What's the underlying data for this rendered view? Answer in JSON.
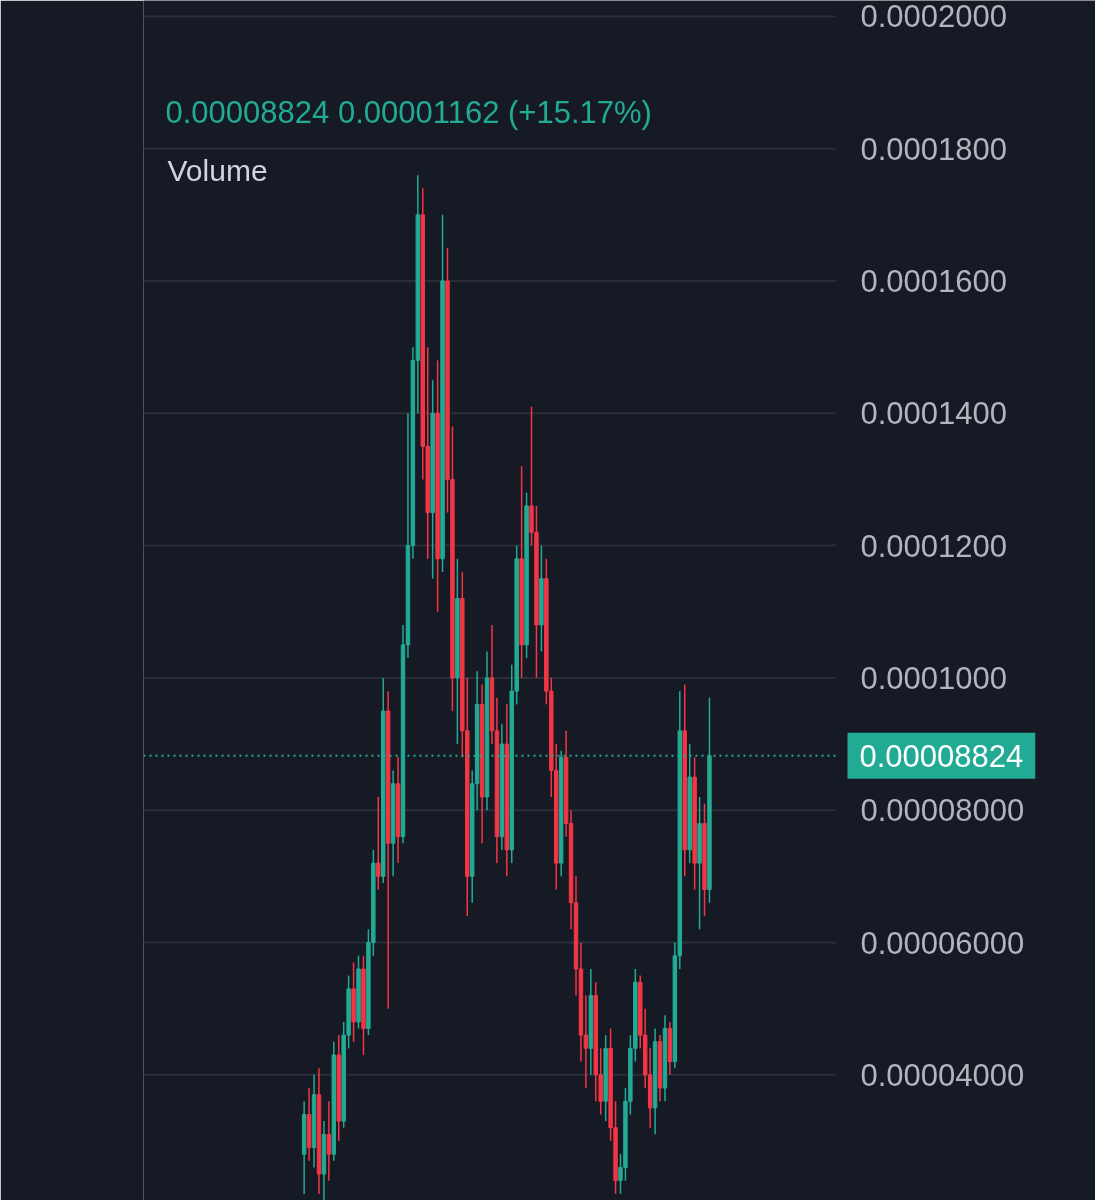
{
  "chart_data": {
    "type": "candlestick",
    "subtitle": "0.00008824  0.00001162 (+15.17%)",
    "annotations": [
      "Volume"
    ],
    "categories": [
      null,
      null,
      null,
      null,
      null,
      null,
      null,
      null,
      null,
      null,
      null,
      null,
      null,
      null,
      null,
      null,
      null,
      null,
      null,
      null,
      null,
      null,
      null,
      null,
      null,
      null,
      null,
      null,
      null,
      null,
      null,
      null,
      null,
      null,
      null,
      null,
      null,
      null,
      null,
      null,
      null,
      null,
      null,
      null,
      null,
      null,
      null,
      null,
      null,
      null,
      null,
      null,
      null,
      null,
      null,
      null,
      null,
      null,
      null,
      null,
      null,
      null,
      null,
      null,
      null,
      null,
      null,
      null,
      null,
      null,
      null,
      null,
      null,
      null,
      null,
      null,
      null,
      null,
      null,
      null,
      null,
      null,
      null,
      null,
      null,
      null,
      null,
      null,
      null,
      null,
      null,
      null,
      null,
      null,
      null,
      null,
      null,
      null,
      null,
      null,
      null,
      null,
      null,
      null,
      null,
      null,
      null,
      null,
      null,
      null,
      null,
      null,
      null,
      null,
      null,
      null,
      null,
      null,
      null,
      null,
      null,
      null,
      null,
      null,
      null,
      null,
      null,
      null,
      null,
      null,
      null,
      null,
      null,
      null,
      null,
      null,
      null,
      null,
      null,
      null
    ],
    "ohlc": [
      null,
      null,
      null,
      null,
      null,
      null,
      null,
      null,
      null,
      null,
      null,
      null,
      null,
      null,
      null,
      null,
      null,
      null,
      null,
      null,
      null,
      null,
      null,
      null,
      null,
      null,
      null,
      null,
      null,
      null,
      null,
      null,
      [
        2.8e-05,
        3.6e-05,
        2.2e-05,
        3.4e-05
      ],
      [
        3.4e-05,
        3.8e-05,
        2.7e-05,
        2.9e-05
      ],
      [
        2.9e-05,
        4e-05,
        2.6e-05,
        3.7e-05
      ],
      [
        3.7e-05,
        4.1e-05,
        2.2e-05,
        2.5e-05
      ],
      [
        2.5e-05,
        3.3e-05,
        2.1e-05,
        3.1e-05
      ],
      [
        3.1e-05,
        3.6e-05,
        2.4e-05,
        2.8e-05
      ],
      [
        2.8e-05,
        4.5e-05,
        2.7e-05,
        4.3e-05
      ],
      [
        4.3e-05,
        4.6e-05,
        3e-05,
        3.3e-05
      ],
      [
        3.3e-05,
        4.8e-05,
        3.2e-05,
        4.6e-05
      ],
      [
        4.6e-05,
        5.5e-05,
        4.4e-05,
        5.3e-05
      ],
      [
        5.3e-05,
        5.7e-05,
        4.5e-05,
        4.8e-05
      ],
      [
        4.8e-05,
        5.8e-05,
        4.7e-05,
        5.6e-05
      ],
      [
        5.6e-05,
        5.8e-05,
        4.3e-05,
        4.7e-05
      ],
      [
        4.7e-05,
        6.2e-05,
        4.6e-05,
        6e-05
      ],
      [
        6e-05,
        7.4e-05,
        5.8e-05,
        7.2e-05
      ],
      [
        7.2e-05,
        8.2e-05,
        6.8e-05,
        7e-05
      ],
      [
        7e-05,
        0.0001,
        6.9e-05,
        9.5e-05
      ],
      [
        9.5e-05,
        9.8e-05,
        5e-05,
        7.5e-05
      ],
      [
        7.5e-05,
        8.6e-05,
        7e-05,
        8.4e-05
      ],
      [
        8.4e-05,
        8.8e-05,
        7.2e-05,
        7.6e-05
      ],
      [
        7.6e-05,
        0.000108,
        7.5e-05,
        0.000105
      ],
      [
        0.000105,
        0.00014,
        0.000103,
        0.00012
      ],
      [
        0.00012,
        0.00015,
        0.000118,
        0.000148
      ],
      [
        0.000148,
        0.000176,
        0.00014,
        0.00017
      ],
      [
        0.00017,
        0.000174,
        0.00013,
        0.000135
      ],
      [
        0.000135,
        0.00015,
        0.000118,
        0.000125
      ],
      [
        0.000125,
        0.000145,
        0.000115,
        0.00014
      ],
      [
        0.00014,
        0.000148,
        0.00011,
        0.000118
      ],
      [
        0.000118,
        0.00017,
        0.000116,
        0.00016
      ],
      [
        0.00016,
        0.000165,
        0.000125,
        0.00013
      ],
      [
        0.00013,
        0.000138,
        9.5e-05,
        0.0001
      ],
      [
        0.0001,
        0.000118,
        9e-05,
        0.000112
      ],
      [
        0.000112,
        0.000116,
        8.8e-05,
        9.2e-05
      ],
      [
        9.2e-05,
        0.0001,
        6.4e-05,
        7e-05
      ],
      [
        7e-05,
        8.6e-05,
        6.6e-05,
        8.4e-05
      ],
      [
        8.4e-05,
        0.000101,
        8e-05,
        9.6e-05
      ],
      [
        9.6e-05,
        9.9e-05,
        7.5e-05,
        8.2e-05
      ],
      [
        8.2e-05,
        0.000104,
        8e-05,
        0.0001
      ],
      [
        0.0001,
        0.000108,
        9e-05,
        9.2e-05
      ],
      [
        9.2e-05,
        9.7e-05,
        7.2e-05,
        7.6e-05
      ],
      [
        7.6e-05,
        9.3e-05,
        7.4e-05,
        9e-05
      ],
      [
        9e-05,
        9.6e-05,
        7e-05,
        7.4e-05
      ],
      [
        7.4e-05,
        0.000102,
        7.2e-05,
        9.8e-05
      ],
      [
        9.8e-05,
        0.00012,
        9.6e-05,
        0.000118
      ],
      [
        0.000118,
        0.000132,
        0.0001,
        0.000105
      ],
      [
        0.000105,
        0.000128,
        0.000103,
        0.000126
      ],
      [
        0.000126,
        0.000141,
        0.00012,
        0.000122
      ],
      [
        0.000122,
        0.000126,
        0.0001,
        0.000108
      ],
      [
        0.000108,
        0.00012,
        0.000104,
        0.000115
      ],
      [
        0.000115,
        0.000118,
        9.6e-05,
        9.8e-05
      ],
      [
        9.8e-05,
        0.0001,
        8.2e-05,
        8.6e-05
      ],
      [
        8.6e-05,
        9e-05,
        6.8e-05,
        7.2e-05
      ],
      [
        7.2e-05,
        8.9e-05,
        7e-05,
        8.8e-05
      ],
      [
        8.8e-05,
        9.2e-05,
        7.6e-05,
        7.8e-05
      ],
      [
        7.8e-05,
        8e-05,
        6.2e-05,
        6.6e-05
      ],
      [
        6.6e-05,
        7e-05,
        5.2e-05,
        5.6e-05
      ],
      [
        5.6e-05,
        6e-05,
        4.2e-05,
        4.6e-05
      ],
      [
        4.6e-05,
        5.2e-05,
        3.8e-05,
        4.4e-05
      ],
      [
        4.4e-05,
        5.6e-05,
        4e-05,
        5.2e-05
      ],
      [
        5.2e-05,
        5.4e-05,
        3.6e-05,
        4e-05
      ],
      [
        4e-05,
        4.4e-05,
        3.4e-05,
        3.6e-05
      ],
      [
        3.6e-05,
        4.6e-05,
        3.3e-05,
        4.4e-05
      ],
      [
        4.4e-05,
        4.7e-05,
        3e-05,
        3.2e-05
      ],
      [
        3.2e-05,
        3.6e-05,
        2.2e-05,
        2.4e-05
      ],
      [
        2.4e-05,
        2.8e-05,
        2.2e-05,
        2.6e-05
      ],
      [
        2.6e-05,
        3.8e-05,
        2.4e-05,
        3.6e-05
      ],
      [
        3.6e-05,
        4.6e-05,
        3.4e-05,
        4.4e-05
      ],
      [
        4.4e-05,
        5.6e-05,
        4.2e-05,
        5.4e-05
      ],
      [
        5.4e-05,
        5.5e-05,
        4.4e-05,
        4.6e-05
      ],
      [
        4.6e-05,
        5e-05,
        3.8e-05,
        4e-05
      ],
      [
        4e-05,
        4.4e-05,
        3.2e-05,
        3.5e-05
      ],
      [
        3.5e-05,
        4.7e-05,
        3.1e-05,
        4.5e-05
      ],
      [
        4.5e-05,
        4.6e-05,
        3.6e-05,
        3.8e-05
      ],
      [
        3.8e-05,
        4.9e-05,
        3.6e-05,
        4.7e-05
      ],
      [
        4.7e-05,
        4.8e-05,
        4e-05,
        4.2e-05
      ],
      [
        4.2e-05,
        6e-05,
        4.1e-05,
        5.8e-05
      ],
      [
        5.8e-05,
        9.8e-05,
        5.6e-05,
        9.2e-05
      ],
      [
        9.2e-05,
        9.9e-05,
        7e-05,
        7.4e-05
      ],
      [
        7.4e-05,
        9e-05,
        7.2e-05,
        8.5e-05
      ],
      [
        8.5e-05,
        8.8e-05,
        6.8e-05,
        7.2e-05
      ],
      [
        7.2e-05,
        8.2e-05,
        6.2e-05,
        7.8e-05
      ],
      [
        7.8e-05,
        8.1e-05,
        6.4e-05,
        6.8e-05
      ],
      [
        6.8e-05,
        9.7e-05,
        6.6e-05,
        8.824e-05
      ],
      null,
      null,
      null,
      null,
      null,
      null,
      null,
      null,
      null,
      null,
      null,
      null,
      null,
      null,
      null,
      null,
      null,
      null,
      null,
      null,
      null,
      null,
      null,
      null,
      null
    ],
    "colors": [
      null,
      null,
      null,
      null,
      null,
      null,
      null,
      null,
      null,
      null,
      null,
      null,
      null,
      null,
      null,
      null,
      null,
      null,
      null,
      null,
      null,
      null,
      null,
      null,
      null,
      null,
      null,
      null,
      null,
      null,
      null,
      null,
      "#22ab94",
      "#f23645",
      "#22ab94",
      "#f23645",
      "#22ab94",
      "#f23645",
      "#22ab94",
      "#f23645",
      "#22ab94",
      "#22ab94",
      "#f23645",
      "#22ab94",
      "#f23645",
      "#22ab94",
      "#22ab94",
      "#f23645",
      "#22ab94",
      "#f23645",
      "#22ab94",
      "#f23645",
      "#22ab94",
      "#22ab94",
      "#22ab94",
      "#22ab94",
      "#f23645",
      "#f23645",
      "#22ab94",
      "#f23645",
      "#22ab94",
      "#f23645",
      "#f23645",
      "#22ab94",
      "#f23645",
      "#f23645",
      "#22ab94",
      "#22ab94",
      "#f23645",
      "#22ab94",
      "#f23645",
      "#f23645",
      "#22ab94",
      "#f23645",
      "#22ab94",
      "#22ab94",
      "#f23645",
      "#22ab94",
      "#f23645",
      "#f23645",
      "#22ab94",
      "#f23645",
      "#f23645",
      "#f23645",
      "#22ab94",
      "#f23645",
      "#f23645",
      "#f23645",
      "#f23645",
      "#f23645",
      "#22ab94",
      "#f23645",
      "#f23645",
      "#22ab94",
      "#f23645",
      "#f23645",
      "#22ab94",
      "#22ab94",
      "#22ab94",
      "#22ab94",
      "#f23645",
      "#f23645",
      "#f23645",
      "#22ab94",
      "#f23645",
      "#22ab94",
      "#f23645",
      "#22ab94",
      "#22ab94",
      "#f23645",
      "#22ab94",
      "#f23645",
      "#22ab94",
      "#f23645",
      "#22ab94",
      null,
      null,
      null,
      null,
      null,
      null,
      null,
      null,
      null,
      null,
      null,
      null,
      null,
      null,
      null,
      null,
      null,
      null,
      null,
      null,
      null,
      null,
      null,
      null,
      null
    ],
    "ylim": [
      2.1e-05,
      0.0002024
    ],
    "yticks": [
      {
        "value": 4e-05,
        "label": "0.00004000"
      },
      {
        "value": 6e-05,
        "label": "0.00006000"
      },
      {
        "value": 8e-05,
        "label": "0.00008000"
      },
      {
        "value": 0.0001,
        "label": "0.0001000"
      },
      {
        "value": 0.00012,
        "label": "0.0001200"
      },
      {
        "value": 0.00014,
        "label": "0.0001400"
      },
      {
        "value": 0.00016,
        "label": "0.0001600"
      },
      {
        "value": 0.00018,
        "label": "0.0001800"
      },
      {
        "value": 0.0002,
        "label": "0.0002000"
      }
    ],
    "ref_lines": [
      {
        "axis": "y",
        "value": 8.824e-05,
        "label": "0.00008824",
        "color": "#22ab94",
        "line_style": "dotted"
      }
    ],
    "grid": "y",
    "tick_labels": "y"
  }
}
